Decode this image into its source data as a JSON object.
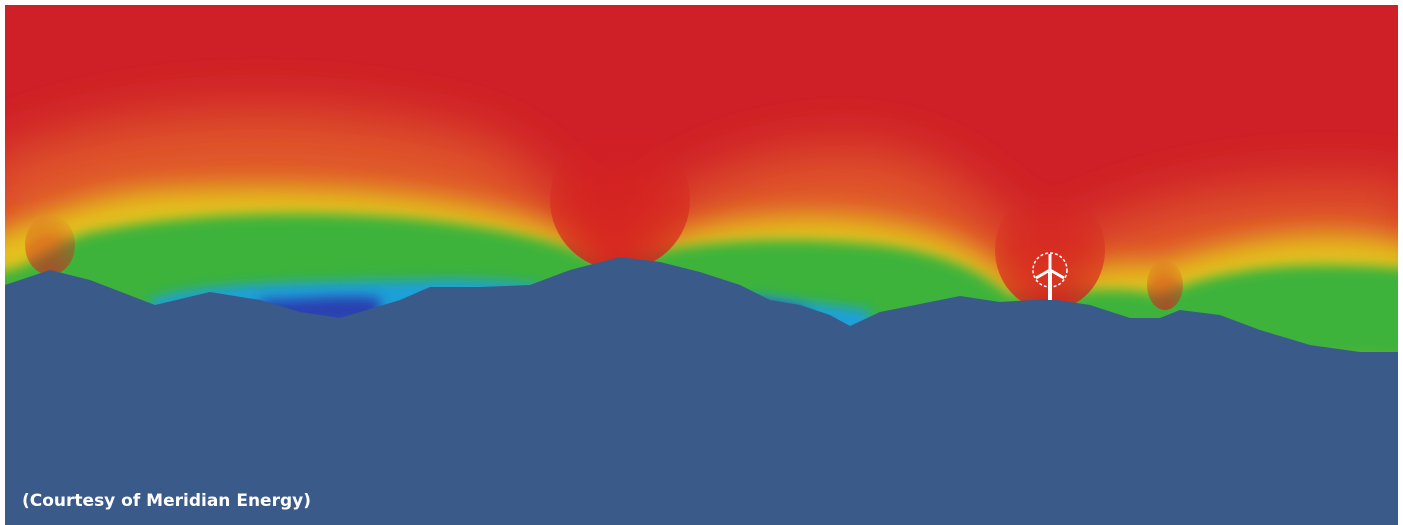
{
  "caption": "(Courtesy of Meridian Energy)"
}
